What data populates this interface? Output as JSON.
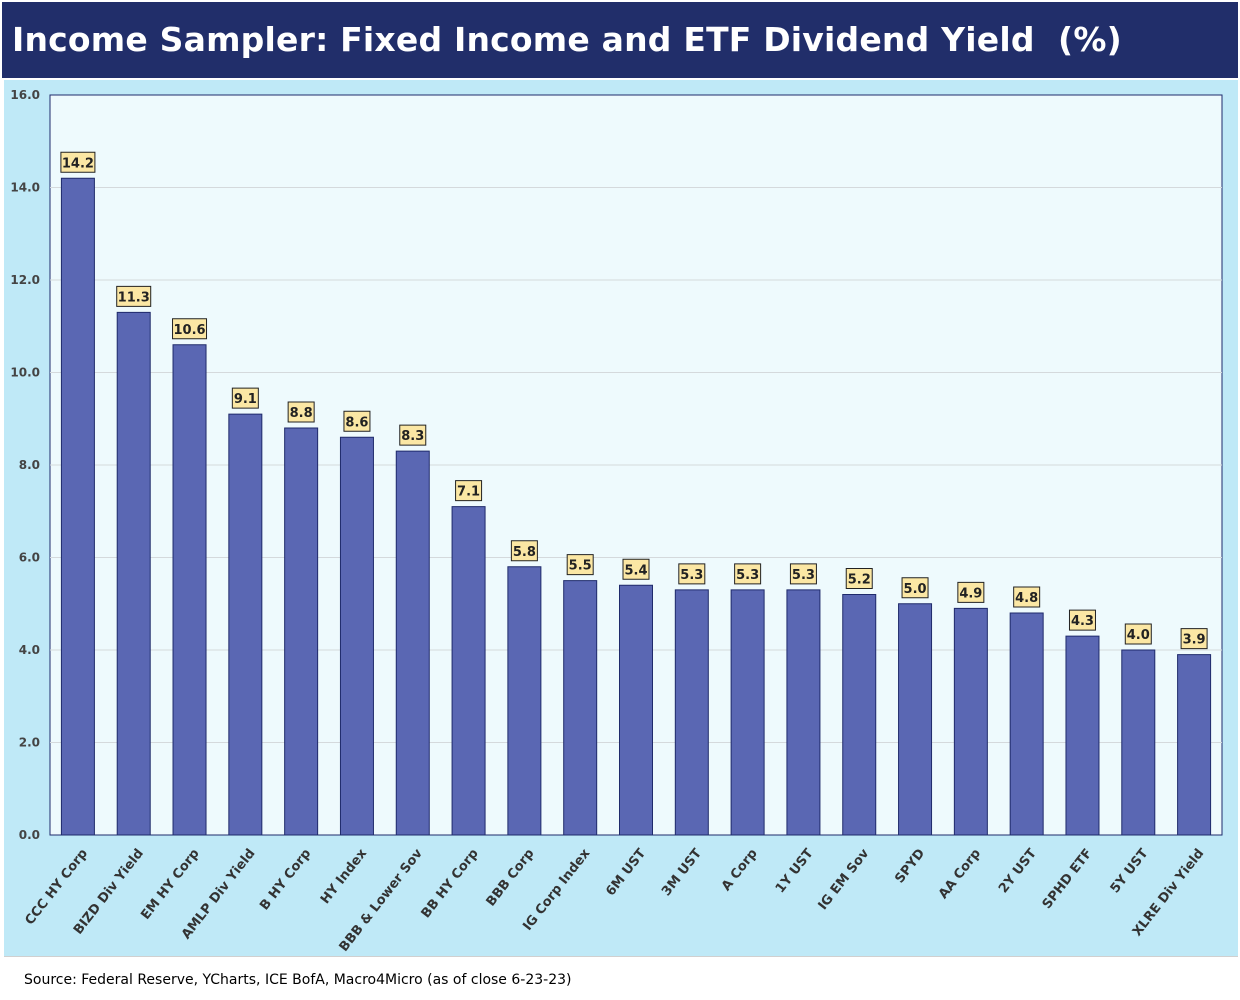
{
  "header": {
    "title": "Income Sampler: Fixed Income and ETF Dividend Yield  (%)"
  },
  "footer": {
    "source": "Source: Federal Reserve, YCharts, ICE BofA, Macro4Micro (as of close 6-23-23)"
  },
  "colors": {
    "header_bg": "#212e6a",
    "chart_bg": "#bfe9f7",
    "plot_bg": "#eefafd",
    "bar_fill": "#5a67b3",
    "bar_stroke": "#1f2a6b",
    "label_fill": "#fbe7a4"
  },
  "chart_data": {
    "type": "bar",
    "title": "Income Sampler: Fixed Income and ETF Dividend Yield  (%)",
    "xlabel": "",
    "ylabel": "",
    "ylim": [
      0,
      16
    ],
    "yticks": [
      "0.0",
      "2.0",
      "4.0",
      "6.0",
      "8.0",
      "10.0",
      "12.0",
      "14.0",
      "16.0"
    ],
    "grid": true,
    "categories": [
      "CCC HY Corp",
      "BIZD Div Yield",
      "EM HY Corp",
      "AMLP Div Yield",
      "B HY Corp",
      "HY Index",
      "BBB & Lower Sov",
      "BB HY Corp",
      "BBB Corp",
      "IG Corp Index",
      "6M UST",
      "3M UST",
      "A Corp",
      "1Y UST",
      "IG EM Sov",
      "SPYD",
      "AA Corp",
      "2Y UST",
      "SPHD ETF",
      "5Y UST",
      "XLRE Div Yield"
    ],
    "values": [
      14.2,
      11.3,
      10.6,
      9.1,
      8.8,
      8.6,
      8.3,
      7.1,
      5.8,
      5.5,
      5.4,
      5.3,
      5.3,
      5.3,
      5.2,
      5.0,
      4.9,
      4.8,
      4.3,
      4.0,
      3.9
    ],
    "data_labels": [
      "14.2",
      "11.3",
      "10.6",
      "9.1",
      "8.8",
      "8.6",
      "8.3",
      "7.1",
      "5.8",
      "5.5",
      "5.4",
      "5.3",
      "5.3",
      "5.3",
      "5.2",
      "5.0",
      "4.9",
      "4.8",
      "4.3",
      "4.0",
      "3.9"
    ]
  }
}
